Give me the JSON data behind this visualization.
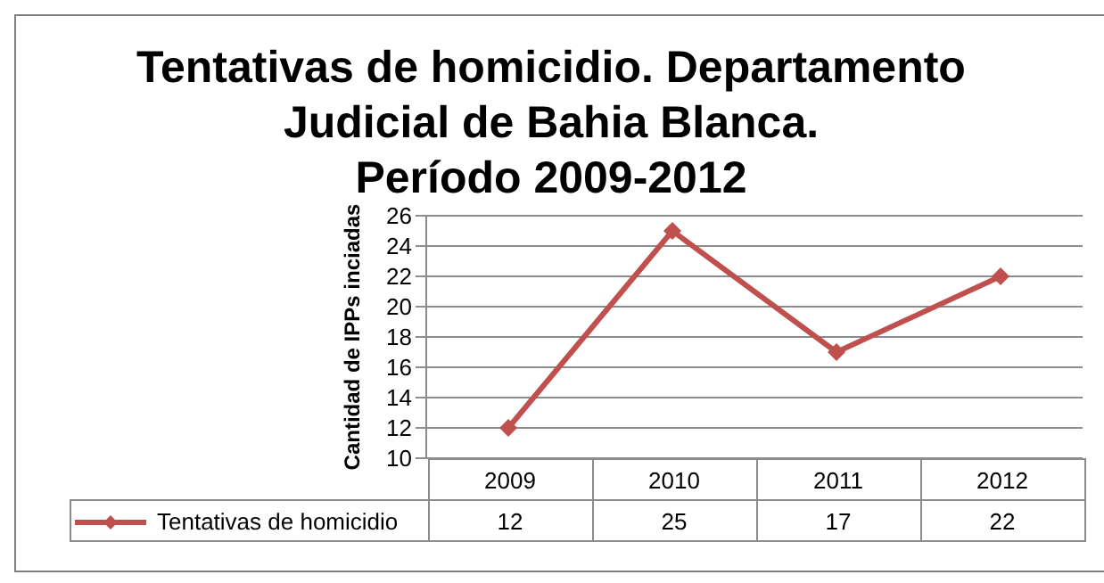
{
  "chart_data": {
    "type": "line",
    "title": "Tentativas de homicidio. Departamento\nJudicial de Bahia Blanca.\nPeríodo  2009-2012",
    "ylabel": "Cantidad de IPPs inciadas",
    "categories": [
      "2009",
      "2010",
      "2011",
      "2012"
    ],
    "series": [
      {
        "name": "Tentativas de homicidio",
        "color": "#c0504d",
        "values": [
          12,
          25,
          17,
          22
        ]
      }
    ],
    "ylim": [
      10,
      26
    ],
    "yticks": [
      10,
      12,
      14,
      16,
      18,
      20,
      22,
      24,
      26
    ],
    "grid": "y",
    "legend": "bottom",
    "marker": "diamond",
    "line_style": "solid",
    "data_labels": true
  }
}
